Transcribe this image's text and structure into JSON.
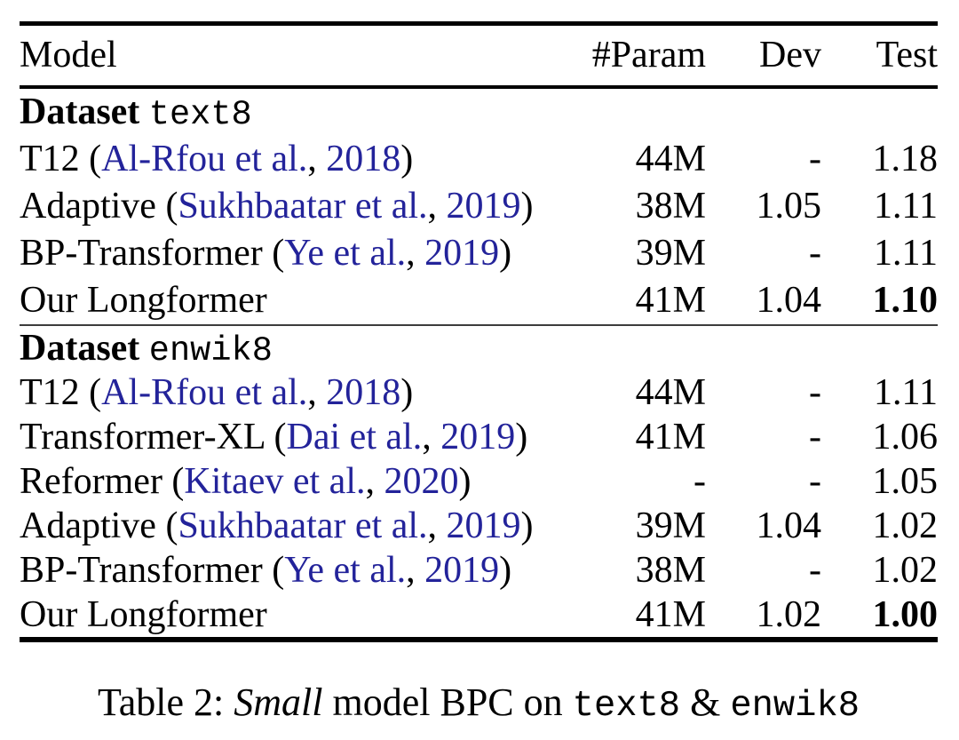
{
  "page": {
    "background": "#ffffff",
    "text_color": "#000000",
    "citation_color": "#23239a"
  },
  "table": {
    "header": {
      "model": "Model",
      "param": "#Param",
      "dev": "Dev",
      "test": "Test"
    },
    "sections": [
      {
        "dataset_label": "Dataset",
        "dataset_name": "text8",
        "rows": [
          {
            "model": {
              "pre": "T12 (",
              "cite": "Al-Rfou et al.",
              "mid": ", ",
              "year": "2018",
              "post": ")"
            },
            "param": "44M",
            "dev": "-",
            "test": "1.18",
            "test_bold": false
          },
          {
            "model": {
              "pre": "Adaptive (",
              "cite": "Sukhbaatar et al.",
              "mid": ", ",
              "year": "2019",
              "post": ")"
            },
            "param": "38M",
            "dev": "1.05",
            "test": "1.11",
            "test_bold": false
          },
          {
            "model": {
              "pre": "BP-Transformer (",
              "cite": "Ye et al.",
              "mid": ", ",
              "year": "2019",
              "post": ")"
            },
            "param": "39M",
            "dev": "-",
            "test": "1.11",
            "test_bold": false
          },
          {
            "model": {
              "pre": "Our Longformer"
            },
            "param": "41M",
            "dev": "1.04",
            "test": "1.10",
            "test_bold": true
          }
        ]
      },
      {
        "dataset_label": "Dataset",
        "dataset_name": "enwik8",
        "rows": [
          {
            "model": {
              "pre": "T12 (",
              "cite": "Al-Rfou et al.",
              "mid": ", ",
              "year": "2018",
              "post": ")"
            },
            "param": "44M",
            "dev": "-",
            "test": "1.11",
            "test_bold": false
          },
          {
            "model": {
              "pre": "Transformer-XL (",
              "cite": "Dai et al.",
              "mid": ", ",
              "year": "2019",
              "post": ")"
            },
            "param": "41M",
            "dev": "-",
            "test": "1.06",
            "test_bold": false
          },
          {
            "model": {
              "pre": "Reformer (",
              "cite": "Kitaev et al.",
              "mid": ", ",
              "year": "2020",
              "post": ")"
            },
            "param": "-",
            "dev": "-",
            "test": "1.05",
            "test_bold": false
          },
          {
            "model": {
              "pre": "Adaptive (",
              "cite": "Sukhbaatar et al.",
              "mid": ", ",
              "year": "2019",
              "post": ")"
            },
            "param": "39M",
            "dev": "1.04",
            "test": "1.02",
            "test_bold": false
          },
          {
            "model": {
              "pre": "BP-Transformer (",
              "cite": "Ye et al.",
              "mid": ", ",
              "year": "2019",
              "post": ")"
            },
            "param": "38M",
            "dev": "-",
            "test": "1.02",
            "test_bold": false
          },
          {
            "model": {
              "pre": "Our Longformer"
            },
            "param": "41M",
            "dev": "1.02",
            "test": "1.00",
            "test_bold": true
          }
        ]
      }
    ]
  },
  "caption": {
    "prefix": "Table 2: ",
    "italic": "Small",
    "middle": " model BPC on ",
    "mono1": "text8",
    "amp": " & ",
    "mono2": "enwik8"
  }
}
